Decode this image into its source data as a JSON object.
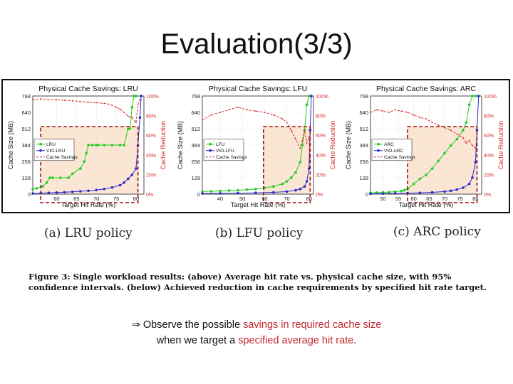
{
  "slide": {
    "title": "Evaluation(3/3)"
  },
  "figure": {
    "subcaptions": [
      "(a) LRU policy",
      "(b) LFU policy",
      "(c) ARC policy"
    ],
    "caption_label": "Figure 3:",
    "caption_text": "Single workload results: (above) Average hit rate vs. physical cache size, with 95% confidence intervals. (below) Achieved reduction in cache requirements by specified hit rate target."
  },
  "note": {
    "arrow": "⇒",
    "line1_a": "Observe the possible ",
    "line1_red": "savings in required cache size",
    "line2_a": "when we target a ",
    "line2_red": "specified average hit rate",
    "line2_end": "."
  },
  "colors": {
    "policy": "#22cc22",
    "vio": "#2a2ad0",
    "savings": "#d42a2a",
    "highlight": "#fbe6d3",
    "dashed_box": "#9a1010"
  },
  "chart_data": [
    {
      "type": "line",
      "title": "Physical Cache Savings: LRU",
      "xlabel": "Target Hit Rate (%)",
      "ylabel": "Cache Size (MB)",
      "ylabel_right": "Cache Reduction",
      "xlim": [
        54,
        82
      ],
      "ylim": [
        0,
        768
      ],
      "xticks": [
        60,
        65,
        70,
        75,
        80
      ],
      "yticks": [
        0,
        128,
        256,
        384,
        512,
        640,
        768
      ],
      "right_ticks": [
        "0%",
        "20%",
        "40%",
        "60%",
        "80%",
        "100%"
      ],
      "legend": [
        "LRU",
        "VIO-LRU",
        "Cache Savings"
      ],
      "legend_position": "middle-left",
      "highlight": {
        "x": [
          56,
          80.5
        ],
        "y": [
          0,
          528
        ]
      },
      "series": [
        {
          "name": "LRU",
          "kind": "policy",
          "x": [
            54,
            55,
            56.5,
            57.5,
            58.3,
            59,
            61,
            63,
            64,
            66,
            67,
            67.5,
            68,
            69,
            70,
            70.5,
            72,
            74,
            76,
            77,
            78,
            78.5,
            79,
            79.5,
            80
          ],
          "y": [
            40,
            45,
            60,
            90,
            128,
            128,
            128,
            128,
            160,
            200,
            256,
            320,
            384,
            384,
            384,
            384,
            384,
            384,
            384,
            384,
            510,
            512,
            680,
            768,
            768
          ]
        },
        {
          "name": "VIO-LRU",
          "kind": "vio",
          "x": [
            54,
            56,
            58,
            60,
            62,
            64,
            66,
            68,
            70,
            72,
            74,
            76,
            77,
            78,
            79,
            80,
            80.5,
            81,
            81.3
          ],
          "y": [
            5,
            8,
            10,
            12,
            15,
            18,
            22,
            26,
            32,
            40,
            52,
            70,
            90,
            120,
            150,
            200,
            380,
            600,
            768
          ]
        },
        {
          "name": "Cache Savings",
          "kind": "savings",
          "x": [
            54,
            56,
            58,
            60,
            62,
            64,
            66,
            68,
            70,
            72,
            73,
            74,
            75,
            76,
            77,
            78,
            79,
            80,
            80.5,
            81
          ],
          "y": [
            740,
            745,
            740,
            738,
            735,
            730,
            725,
            720,
            715,
            710,
            705,
            695,
            680,
            665,
            640,
            610,
            600,
            560,
            700,
            740
          ]
        }
      ]
    },
    {
      "type": "line",
      "title": "Physical Cache Savings: LFU",
      "xlabel": "Target Hit Rate (%)",
      "ylabel": "Cache Size (MB)",
      "ylabel_right": "Cache Reduction",
      "xlim": [
        32,
        82
      ],
      "ylim": [
        0,
        768
      ],
      "xticks": [
        40,
        50,
        60,
        70,
        80
      ],
      "yticks": [
        0,
        128,
        256,
        384,
        512,
        640,
        768
      ],
      "right_ticks": [
        "0%",
        "20%",
        "40%",
        "60%",
        "80%",
        "100%"
      ],
      "legend": [
        "LFU",
        "VIO-LFU",
        "Cache Savings"
      ],
      "legend_position": "middle-left",
      "highlight": {
        "x": [
          59.5,
          80.5
        ],
        "y": [
          0,
          528
        ]
      },
      "series": [
        {
          "name": "LFU",
          "kind": "policy",
          "x": [
            32,
            36,
            40,
            44,
            48,
            52,
            56,
            60,
            64,
            68,
            70,
            72,
            74,
            76,
            77,
            78,
            79,
            80
          ],
          "y": [
            20,
            22,
            25,
            28,
            30,
            35,
            40,
            50,
            60,
            80,
            100,
            130,
            170,
            250,
            384,
            500,
            700,
            768
          ]
        },
        {
          "name": "VIO-LFU",
          "kind": "vio",
          "x": [
            32,
            40,
            48,
            56,
            64,
            70,
            74,
            76,
            78,
            79,
            80,
            80.5,
            81
          ],
          "y": [
            5,
            6,
            8,
            10,
            14,
            20,
            30,
            40,
            60,
            100,
            200,
            500,
            768
          ]
        },
        {
          "name": "Cache Savings",
          "kind": "savings",
          "x": [
            32,
            36,
            40,
            44,
            48,
            52,
            56,
            60,
            64,
            68,
            70,
            72,
            74,
            76,
            77,
            78,
            79,
            80,
            80.5
          ],
          "y": [
            580,
            620,
            640,
            660,
            680,
            660,
            650,
            640,
            620,
            590,
            560,
            500,
            430,
            360,
            420,
            500,
            400,
            450,
            250
          ]
        }
      ]
    },
    {
      "type": "line",
      "title": "Physical Cache Savings: ARC",
      "xlabel": "Target Hit Rate (%)",
      "ylabel": "Cache Size (MB)",
      "ylabel_right": "Cache Reduction",
      "xlim": [
        46,
        82
      ],
      "ylim": [
        0,
        768
      ],
      "xticks": [
        50,
        55,
        60,
        65,
        70,
        75,
        80
      ],
      "yticks": [
        0,
        128,
        256,
        384,
        512,
        640,
        768
      ],
      "right_ticks": [
        "0%",
        "20%",
        "40%",
        "60%",
        "80%",
        "100%"
      ],
      "legend": [
        "ARC",
        "VIO-ARC",
        "Cache Savings"
      ],
      "legend_position": "middle-left",
      "highlight": {
        "x": [
          58,
          80.5
        ],
        "y": [
          0,
          528
        ]
      },
      "series": [
        {
          "name": "ARC",
          "kind": "policy",
          "x": [
            46,
            48,
            50,
            52,
            54,
            56,
            57,
            58,
            60,
            62,
            64,
            66,
            68,
            70,
            72,
            74,
            76,
            77,
            78,
            79,
            80
          ],
          "y": [
            10,
            12,
            14,
            16,
            20,
            24,
            30,
            40,
            80,
            120,
            150,
            200,
            260,
            320,
            380,
            430,
            500,
            560,
            700,
            768,
            768
          ]
        },
        {
          "name": "VIO-ARC",
          "kind": "vio",
          "x": [
            46,
            50,
            54,
            58,
            62,
            66,
            70,
            72,
            74,
            76,
            78,
            79,
            80,
            80.5,
            81
          ],
          "y": [
            3,
            4,
            6,
            8,
            10,
            14,
            20,
            26,
            36,
            50,
            80,
            130,
            250,
            500,
            768
          ]
        },
        {
          "name": "Cache Savings",
          "kind": "savings",
          "x": [
            46,
            48,
            50,
            52,
            54,
            56,
            58,
            60,
            62,
            64,
            66,
            68,
            70,
            72,
            74,
            76,
            77,
            78,
            79,
            80
          ],
          "y": [
            640,
            660,
            650,
            640,
            660,
            650,
            640,
            620,
            600,
            590,
            560,
            540,
            520,
            500,
            470,
            440,
            400,
            420,
            380,
            360
          ]
        }
      ]
    }
  ]
}
